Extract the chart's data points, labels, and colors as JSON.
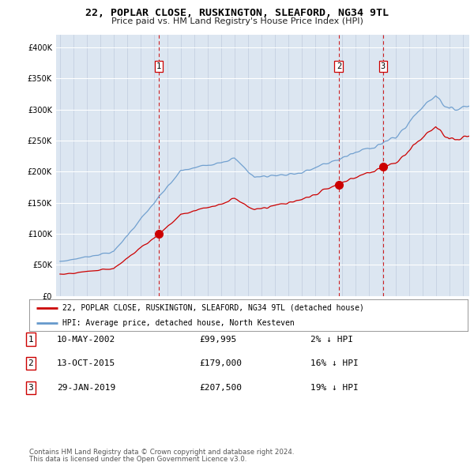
{
  "title": "22, POPLAR CLOSE, RUSKINGTON, SLEAFORD, NG34 9TL",
  "subtitle": "Price paid vs. HM Land Registry's House Price Index (HPI)",
  "legend_line1": "22, POPLAR CLOSE, RUSKINGTON, SLEAFORD, NG34 9TL (detached house)",
  "legend_line2": "HPI: Average price, detached house, North Kesteven",
  "footer1": "Contains HM Land Registry data © Crown copyright and database right 2024.",
  "footer2": "This data is licensed under the Open Government Licence v3.0.",
  "sales": [
    {
      "num": 1,
      "date": "10-MAY-2002",
      "price": 99995,
      "hpi_diff": "2% ↓ HPI",
      "x": 2002.36
    },
    {
      "num": 2,
      "date": "13-OCT-2015",
      "price": 179000,
      "hpi_diff": "16% ↓ HPI",
      "x": 2015.78
    },
    {
      "num": 3,
      "date": "29-JAN-2019",
      "price": 207500,
      "hpi_diff": "19% ↓ HPI",
      "x": 2019.08
    }
  ],
  "sale_color": "#cc0000",
  "hpi_color": "#6699cc",
  "vline_color": "#cc0000",
  "bg_color": "#dce6f1",
  "ylim": [
    0,
    420000
  ],
  "xlim": [
    1994.7,
    2025.5
  ],
  "yticks": [
    0,
    50000,
    100000,
    150000,
    200000,
    250000,
    300000,
    350000,
    400000
  ],
  "xticks": [
    1995,
    1996,
    1997,
    1998,
    1999,
    2000,
    2001,
    2002,
    2003,
    2004,
    2005,
    2006,
    2007,
    2008,
    2009,
    2010,
    2011,
    2012,
    2013,
    2014,
    2015,
    2016,
    2017,
    2018,
    2019,
    2020,
    2021,
    2022,
    2023,
    2024,
    2025
  ]
}
